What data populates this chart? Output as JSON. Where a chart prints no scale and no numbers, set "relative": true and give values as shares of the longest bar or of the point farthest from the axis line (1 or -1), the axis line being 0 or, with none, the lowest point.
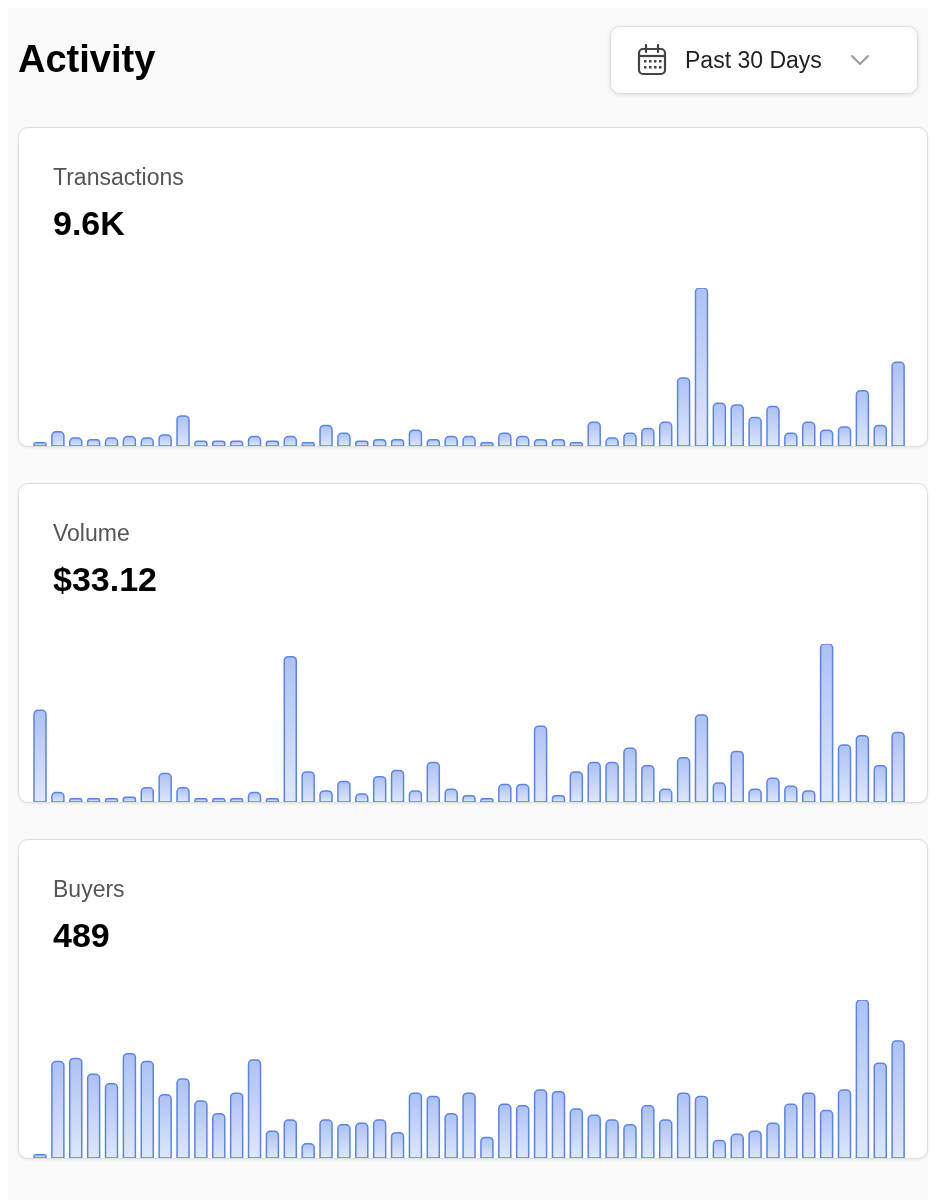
{
  "chart_data": [
    {
      "type": "bar",
      "title": "Transactions",
      "subtitle": "9.6K",
      "annotations": [
        "Activity",
        "Past 30 Days"
      ],
      "relative": true,
      "color": "#5b84e8",
      "categories": [
        null,
        null,
        null,
        null,
        null,
        null,
        null,
        null,
        null,
        null,
        null,
        null,
        null,
        null,
        null,
        null,
        null,
        null,
        null,
        null,
        null,
        null,
        null,
        null,
        null,
        null,
        null,
        null,
        null,
        null,
        null,
        null,
        null,
        null,
        null,
        null,
        null,
        null,
        null,
        null,
        null,
        null,
        null,
        null,
        null,
        null,
        null,
        null,
        null
      ],
      "values": [
        0.02,
        0.09,
        0.05,
        0.04,
        0.05,
        0.06,
        0.05,
        0.07,
        0.19,
        0.03,
        0.03,
        0.03,
        0.06,
        0.03,
        0.06,
        0.02,
        0.13,
        0.08,
        0.03,
        0.04,
        0.04,
        0.1,
        0.04,
        0.06,
        0.06,
        0.02,
        0.08,
        0.06,
        0.04,
        0.04,
        0.02,
        0.15,
        0.05,
        0.08,
        0.11,
        0.15,
        0.43,
        1,
        0.27,
        0.26,
        0.18,
        0.25,
        0.08,
        0.15,
        0.1,
        0.12,
        0.35,
        0.13,
        0.53
      ]
    },
    {
      "type": "bar",
      "title": "Volume",
      "subtitle": "$33.12",
      "relative": true,
      "color": "#5b84e8",
      "categories": [
        null,
        null,
        null,
        null,
        null,
        null,
        null,
        null,
        null,
        null,
        null,
        null,
        null,
        null,
        null,
        null,
        null,
        null,
        null,
        null,
        null,
        null,
        null,
        null,
        null,
        null,
        null,
        null,
        null,
        null,
        null,
        null,
        null,
        null,
        null,
        null,
        null,
        null,
        null,
        null,
        null,
        null,
        null,
        null,
        null,
        null,
        null,
        null,
        null
      ],
      "values": [
        0.58,
        0.06,
        0.02,
        0.02,
        0.02,
        0.03,
        0.09,
        0.18,
        0.09,
        0.02,
        0.02,
        0.02,
        0.06,
        0.02,
        0.92,
        0.19,
        0.07,
        0.13,
        0.05,
        0.16,
        0.2,
        0.07,
        0.25,
        0.08,
        0.04,
        0.02,
        0.11,
        0.11,
        0.48,
        0.04,
        0.19,
        0.25,
        0.25,
        0.34,
        0.23,
        0.08,
        0.28,
        0.55,
        0.12,
        0.32,
        0.08,
        0.15,
        0.1,
        0.07,
        1,
        0.36,
        0.42,
        0.23,
        0.44
      ]
    },
    {
      "type": "bar",
      "title": "Buyers",
      "subtitle": "489",
      "relative": true,
      "color": "#5b84e8",
      "categories": [
        null,
        null,
        null,
        null,
        null,
        null,
        null,
        null,
        null,
        null,
        null,
        null,
        null,
        null,
        null,
        null,
        null,
        null,
        null,
        null,
        null,
        null,
        null,
        null,
        null,
        null,
        null,
        null,
        null,
        null,
        null,
        null,
        null,
        null,
        null,
        null,
        null,
        null,
        null,
        null,
        null,
        null,
        null,
        null,
        null,
        null,
        null,
        null,
        null
      ],
      "values": [
        0.02,
        0.61,
        0.63,
        0.53,
        0.47,
        0.66,
        0.61,
        0.4,
        0.5,
        0.36,
        0.28,
        0.41,
        0.62,
        0.17,
        0.24,
        0.09,
        0.24,
        0.21,
        0.22,
        0.24,
        0.16,
        0.41,
        0.39,
        0.28,
        0.41,
        0.13,
        0.34,
        0.33,
        0.43,
        0.42,
        0.31,
        0.27,
        0.24,
        0.21,
        0.33,
        0.24,
        0.41,
        0.39,
        0.11,
        0.15,
        0.17,
        0.22,
        0.34,
        0.41,
        0.3,
        0.43,
        1,
        0.6,
        0.74
      ]
    }
  ]
}
